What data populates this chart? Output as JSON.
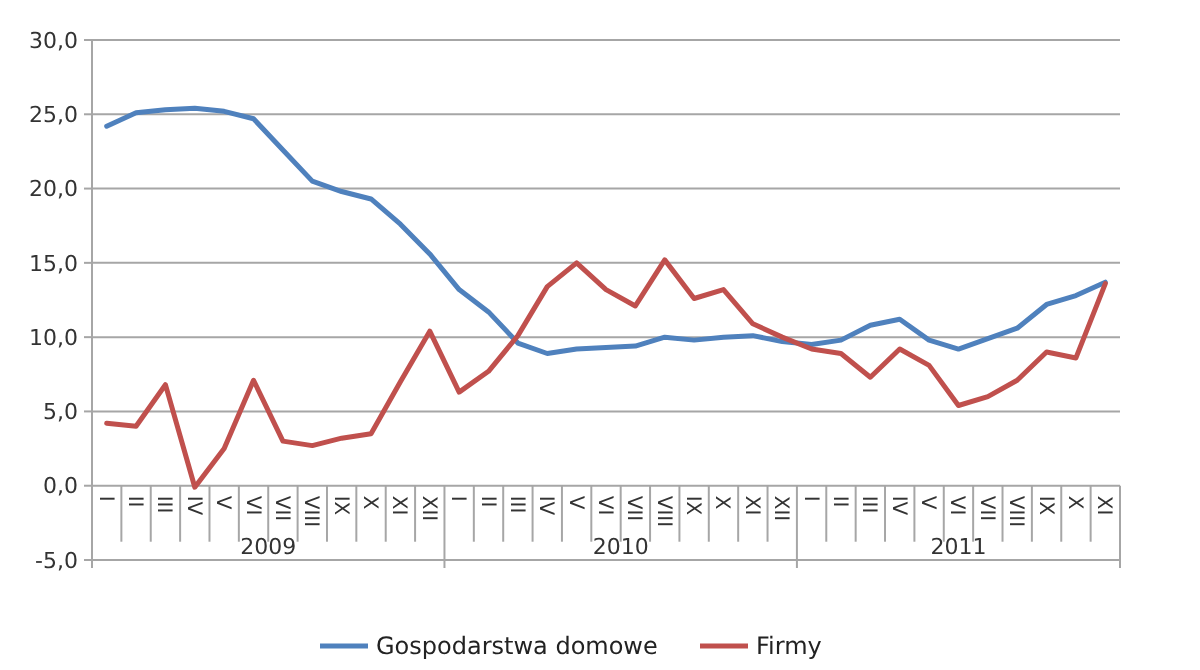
{
  "chart_data": {
    "type": "line",
    "categories": [
      "I",
      "II",
      "III",
      "IV",
      "V",
      "VI",
      "VII",
      "VIII",
      "IX",
      "X",
      "XI",
      "XII",
      "I",
      "II",
      "III",
      "IV",
      "V",
      "VI",
      "VII",
      "VIII",
      "IX",
      "X",
      "XI",
      "XII",
      "I",
      "II",
      "III",
      "IV",
      "V",
      "VI",
      "VII",
      "VIII",
      "IX",
      "X",
      "XI"
    ],
    "series": [
      {
        "name": "Gospodarstwa domowe",
        "color": "#4f81bd",
        "values": [
          24.2,
          25.1,
          25.3,
          25.4,
          25.2,
          24.7,
          22.6,
          20.5,
          19.8,
          19.3,
          17.6,
          15.6,
          13.2,
          11.7,
          9.6,
          8.9,
          9.2,
          9.3,
          9.4,
          10.0,
          9.8,
          10.0,
          10.1,
          9.7,
          9.5,
          9.8,
          10.8,
          11.2,
          9.8,
          9.2,
          9.9,
          10.6,
          12.2,
          12.8,
          13.7
        ]
      },
      {
        "name": "Firmy",
        "color": "#c0504d",
        "values": [
          4.2,
          4.0,
          6.8,
          -0.1,
          2.5,
          7.1,
          3.0,
          2.7,
          3.2,
          3.5,
          7.0,
          10.4,
          6.3,
          7.7,
          10.1,
          13.4,
          15.0,
          13.2,
          12.1,
          15.2,
          12.6,
          13.2,
          10.9,
          10.0,
          9.2,
          8.9,
          7.3,
          9.2,
          8.1,
          5.4,
          6.0,
          7.1,
          9.0,
          8.6,
          13.6
        ]
      }
    ],
    "ylim": [
      -5,
      30
    ],
    "yticks": [
      {
        "value": -5,
        "label": "-5,0"
      },
      {
        "value": 0,
        "label": "0,0"
      },
      {
        "value": 5,
        "label": "5,0"
      },
      {
        "value": 10,
        "label": "10,0"
      },
      {
        "value": 15,
        "label": "15,0"
      },
      {
        "value": 20,
        "label": "20,0"
      },
      {
        "value": 25,
        "label": "25,0"
      },
      {
        "value": 30,
        "label": "30,0"
      }
    ],
    "annotations": [
      "2009",
      "2010",
      "2011"
    ],
    "grid": "y",
    "legend": "bottom",
    "marker": "none",
    "line_style": "solid"
  }
}
